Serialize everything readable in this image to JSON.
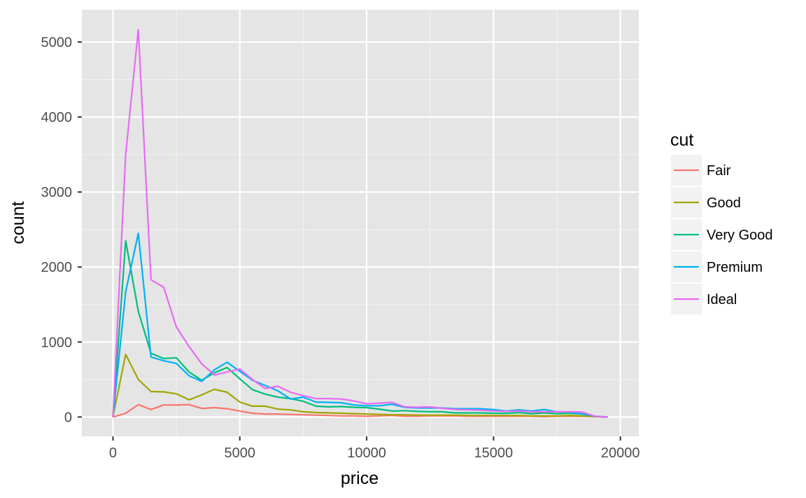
{
  "chart_data": {
    "type": "line",
    "title": "",
    "xlabel": "price",
    "ylabel": "count",
    "xlim": [
      -1225,
      20725
    ],
    "ylim": [
      -258,
      5430
    ],
    "x_ticks": [
      0,
      5000,
      10000,
      15000,
      20000
    ],
    "x_tick_labels": [
      "0",
      "5000",
      "10000",
      "15000",
      "20000"
    ],
    "y_ticks": [
      0,
      1000,
      2000,
      3000,
      4000,
      5000
    ],
    "y_tick_labels": [
      "0",
      "1000",
      "2000",
      "3000",
      "4000",
      "5000"
    ],
    "x_minor_ticks": [
      2500,
      7500,
      12500,
      17500
    ],
    "y_minor_ticks": [
      500,
      1500,
      2500,
      3500,
      4500
    ],
    "grid": true,
    "panel_background": "#e5e5e5",
    "legend": {
      "title": "cut",
      "position": "right"
    },
    "x": [
      0,
      500,
      1000,
      1500,
      2000,
      2500,
      3000,
      3500,
      4000,
      4500,
      5000,
      5500,
      6000,
      6500,
      7000,
      7500,
      8000,
      8500,
      9000,
      9500,
      10000,
      10500,
      11000,
      11500,
      12000,
      12500,
      13000,
      13500,
      14000,
      14500,
      15000,
      15500,
      16000,
      16500,
      17000,
      17500,
      18000,
      18500,
      19000,
      19500
    ],
    "series": [
      {
        "name": "Fair",
        "color": "#F8766D",
        "values": [
          0,
          50,
          165,
          100,
          160,
          160,
          165,
          115,
          125,
          110,
          80,
          50,
          40,
          40,
          35,
          30,
          25,
          20,
          15,
          15,
          10,
          15,
          20,
          10,
          10,
          15,
          15,
          15,
          10,
          10,
          10,
          10,
          10,
          10,
          5,
          10,
          10,
          10,
          5,
          0
        ]
      },
      {
        "name": "Good",
        "color": "#A3A500",
        "values": [
          0,
          835,
          500,
          340,
          335,
          310,
          230,
          295,
          370,
          330,
          200,
          145,
          145,
          105,
          95,
          70,
          60,
          55,
          50,
          45,
          40,
          35,
          30,
          30,
          25,
          25,
          25,
          25,
          20,
          20,
          20,
          20,
          20,
          15,
          15,
          15,
          20,
          15,
          5,
          0
        ]
      },
      {
        "name": "Very Good",
        "color": "#00BF7D",
        "values": [
          0,
          2350,
          1410,
          850,
          780,
          790,
          600,
          490,
          590,
          660,
          510,
          365,
          305,
          265,
          245,
          210,
          145,
          135,
          140,
          130,
          125,
          105,
          80,
          85,
          75,
          70,
          70,
          55,
          55,
          55,
          50,
          50,
          60,
          45,
          55,
          45,
          50,
          40,
          10,
          0
        ]
      },
      {
        "name": "Premium",
        "color": "#00B0F6",
        "values": [
          0,
          1670,
          2450,
          800,
          750,
          715,
          550,
          475,
          630,
          730,
          610,
          490,
          420,
          350,
          240,
          265,
          200,
          195,
          190,
          160,
          150,
          150,
          170,
          130,
          120,
          120,
          120,
          110,
          110,
          110,
          100,
          80,
          95,
          80,
          100,
          70,
          65,
          40,
          10,
          0
        ]
      },
      {
        "name": "Ideal",
        "color": "#E76BF3",
        "values": [
          0,
          3500,
          5165,
          1830,
          1730,
          1200,
          940,
          710,
          560,
          600,
          640,
          500,
          380,
          410,
          330,
          285,
          245,
          245,
          240,
          215,
          175,
          185,
          195,
          135,
          130,
          135,
          115,
          100,
          95,
          90,
          80,
          75,
          80,
          70,
          70,
          70,
          70,
          65,
          10,
          0
        ]
      }
    ]
  }
}
